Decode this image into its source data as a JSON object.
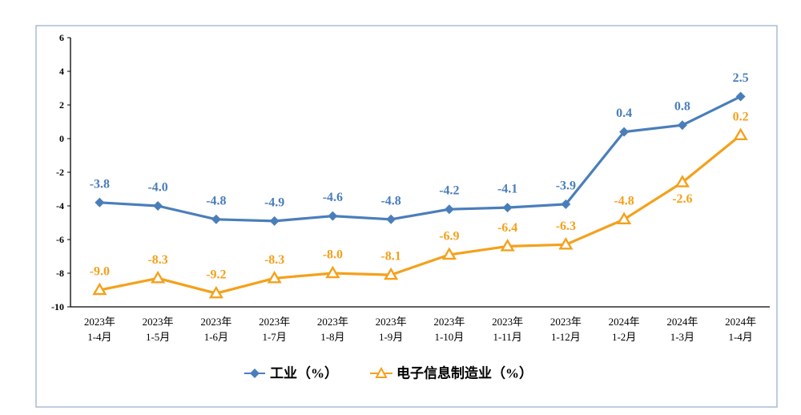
{
  "chart_data": {
    "type": "line",
    "categories": [
      "2023年\n1-4月",
      "2023年\n1-5月",
      "2023年\n1-6月",
      "2023年\n1-7月",
      "2023年\n1-8月",
      "2023年\n1-9月",
      "2023年\n1-10月",
      "2023年\n1-11月",
      "2023年\n1-12月",
      "2024年\n1-2月",
      "2024年\n1-3月",
      "2024年\n1-4月"
    ],
    "ylim": [
      -10,
      6
    ],
    "yticks": [
      6,
      4,
      2,
      0,
      -2,
      -4,
      -6,
      -8,
      -10
    ],
    "grid": false,
    "legend_position": "bottom",
    "data_labels": true,
    "series": [
      {
        "name": "工业（%）",
        "values": [
          -3.8,
          -4.0,
          -4.8,
          -4.9,
          -4.6,
          -4.8,
          -4.2,
          -4.1,
          -3.9,
          0.4,
          0.8,
          2.5
        ],
        "color": "#4A7EBB",
        "marker": "diamond"
      },
      {
        "name": "电子信息制造业（%）",
        "values": [
          -9.0,
          -8.3,
          -9.2,
          -8.3,
          -8.0,
          -8.1,
          -6.9,
          -6.4,
          -6.3,
          -4.8,
          -2.6,
          0.2
        ],
        "color": "#F4A11C",
        "marker": "hollow-triangle"
      }
    ]
  }
}
